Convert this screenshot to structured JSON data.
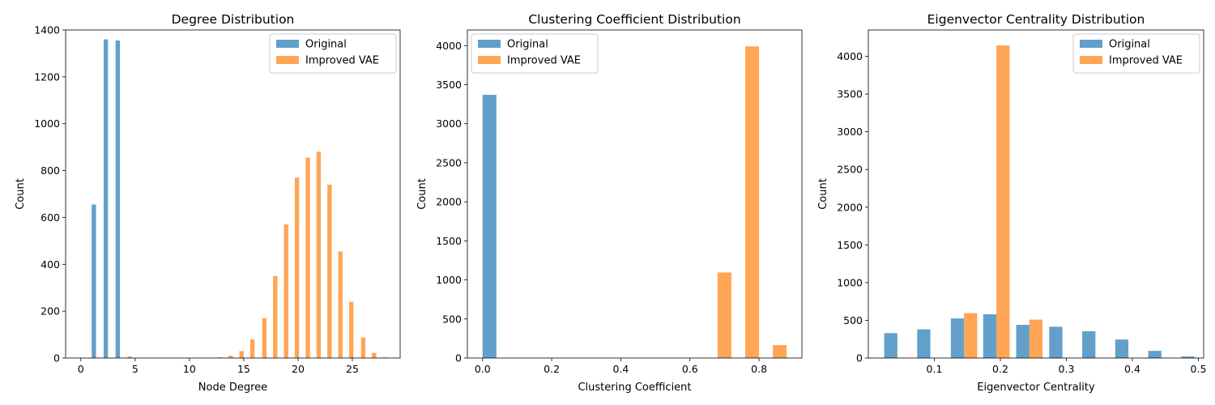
{
  "colors": {
    "original": "#1f77b4",
    "improved": "#ff7f0e"
  },
  "chart_data": [
    {
      "type": "bar",
      "title": "Degree Distribution",
      "xlabel": "Node Degree",
      "ylabel": "Count",
      "xlim": [
        -1.4,
        29.4
      ],
      "ylim": [
        0,
        1400
      ],
      "xticks": [
        0,
        5,
        10,
        15,
        20,
        25
      ],
      "yticks": [
        0,
        200,
        400,
        600,
        800,
        1000,
        1200,
        1400
      ],
      "legend_position": "top-right",
      "series": [
        {
          "name": "Original",
          "color": "original",
          "bins": [
            [
              1.0,
              1.4,
              655
            ],
            [
              2.1,
              2.5,
              1360
            ],
            [
              3.2,
              3.6,
              1355
            ],
            [
              4.3,
              4.7,
              5
            ]
          ]
        },
        {
          "name": "Improved VAE",
          "color": "improved",
          "bins": [
            [
              11.6,
              12.0,
              1
            ],
            [
              12.6,
              13.0,
              3
            ],
            [
              13.6,
              14.0,
              10
            ],
            [
              14.6,
              15.0,
              30
            ],
            [
              15.6,
              16.0,
              80
            ],
            [
              16.7,
              17.1,
              170
            ],
            [
              17.7,
              18.1,
              350
            ],
            [
              18.7,
              19.1,
              570
            ],
            [
              19.7,
              20.1,
              770
            ],
            [
              20.7,
              21.1,
              855
            ],
            [
              21.7,
              22.1,
              880
            ],
            [
              22.7,
              23.1,
              740
            ],
            [
              23.7,
              24.1,
              455
            ],
            [
              24.7,
              25.1,
              240
            ],
            [
              25.8,
              26.2,
              88
            ],
            [
              26.8,
              27.2,
              22
            ],
            [
              27.8,
              28.2,
              3
            ]
          ]
        }
      ]
    },
    {
      "type": "bar",
      "title": "Clustering Coefficient Distribution",
      "xlabel": "Clustering Coefficient",
      "ylabel": "Count",
      "xlim": [
        -0.044,
        0.924
      ],
      "ylim": [
        0,
        4200
      ],
      "xticks": [
        0.0,
        0.2,
        0.4,
        0.6,
        0.8
      ],
      "yticks": [
        0,
        500,
        1000,
        1500,
        2000,
        2500,
        3000,
        3500,
        4000
      ],
      "legend_position": "top-left",
      "series": [
        {
          "name": "Original",
          "color": "original",
          "bins": [
            [
              0.0,
              0.04,
              3370
            ]
          ]
        },
        {
          "name": "Improved VAE",
          "color": "improved",
          "bins": [
            [
              0.68,
              0.72,
              1095
            ],
            [
              0.76,
              0.8,
              3990
            ],
            [
              0.84,
              0.88,
              165
            ]
          ]
        }
      ]
    },
    {
      "type": "bar",
      "title": "Eigenvector Centrality Distribution",
      "xlabel": "Eigenvector Centrality",
      "ylabel": "Count",
      "xlim": [
        0.0,
        0.508
      ],
      "ylim": [
        0,
        4350
      ],
      "xticks": [
        0.1,
        0.2,
        0.3,
        0.4,
        0.5
      ],
      "yticks": [
        0,
        500,
        1000,
        1500,
        2000,
        2500,
        3000,
        3500,
        4000
      ],
      "legend_position": "top-right",
      "series": [
        {
          "name": "Original",
          "color": "original",
          "bins": [
            [
              0.024,
              0.044,
              330
            ],
            [
              0.074,
              0.094,
              380
            ],
            [
              0.125,
              0.145,
              525
            ],
            [
              0.174,
              0.194,
              580
            ],
            [
              0.224,
              0.244,
              440
            ],
            [
              0.274,
              0.294,
              415
            ],
            [
              0.324,
              0.344,
              355
            ],
            [
              0.374,
              0.394,
              245
            ],
            [
              0.424,
              0.444,
              95
            ],
            [
              0.474,
              0.494,
              20
            ]
          ]
        },
        {
          "name": "Improved VAE",
          "color": "improved",
          "bins": [
            [
              0.145,
              0.165,
              595
            ],
            [
              0.194,
              0.214,
              4145
            ],
            [
              0.244,
              0.264,
              510
            ]
          ]
        }
      ]
    }
  ]
}
